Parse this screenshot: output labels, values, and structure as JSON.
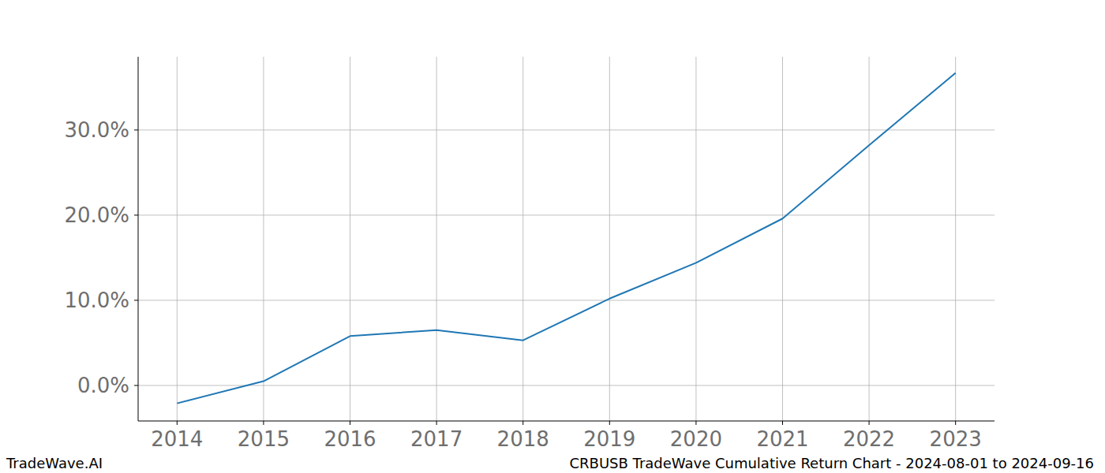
{
  "chart_data": {
    "type": "line",
    "title": "CRBUSB TradeWave Cumulative Return Chart - 2024-08-01 to 2024-09-16",
    "source": "TradeWave.AI",
    "x": [
      2014,
      2015,
      2016,
      2017,
      2018,
      2019,
      2020,
      2021,
      2022,
      2023
    ],
    "series": [
      {
        "name": "CRBUSB",
        "color": "#1f77b4",
        "values": [
          -2.1,
          0.5,
          5.8,
          6.5,
          5.3,
          10.2,
          14.4,
          19.6,
          28.2,
          36.7
        ]
      }
    ],
    "xlim": [
      2013.55,
      2023.45
    ],
    "xticks": [
      2014,
      2015,
      2016,
      2017,
      2018,
      2019,
      2020,
      2021,
      2022,
      2023
    ],
    "ylim": [
      -4.17,
      38.6
    ],
    "yticks": [
      {
        "value": 0,
        "label": "0.0%"
      },
      {
        "value": 10,
        "label": "10.0%"
      },
      {
        "value": 20,
        "label": "20.0%"
      },
      {
        "value": 30,
        "label": "30.0%"
      }
    ],
    "grid": true
  }
}
